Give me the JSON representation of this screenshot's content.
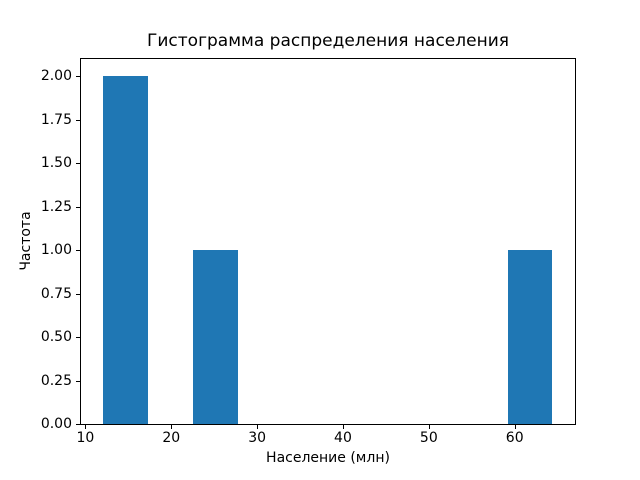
{
  "chart_data": {
    "type": "bar",
    "subtype": "histogram",
    "title": "Гистограмма распределения населения",
    "xlabel": "Население (млн)",
    "ylabel": "Частота",
    "bar_color": "#1f77b4",
    "axes_edge_color": "#000000",
    "background_color": "#ffffff",
    "grid": false,
    "legend": null,
    "xlim": [
      9.49,
      67.02
    ],
    "ylim": [
      0,
      2.1
    ],
    "x_ticks": [
      {
        "value": 10,
        "label": "10"
      },
      {
        "value": 20,
        "label": "20"
      },
      {
        "value": 30,
        "label": "30"
      },
      {
        "value": 40,
        "label": "40"
      },
      {
        "value": 50,
        "label": "50"
      },
      {
        "value": 60,
        "label": "60"
      }
    ],
    "y_ticks": [
      {
        "value": 0.0,
        "label": "0.00"
      },
      {
        "value": 0.25,
        "label": "0.25"
      },
      {
        "value": 0.5,
        "label": "0.50"
      },
      {
        "value": 0.75,
        "label": "0.75"
      },
      {
        "value": 1.0,
        "label": "1.00"
      },
      {
        "value": 1.25,
        "label": "1.25"
      },
      {
        "value": 1.5,
        "label": "1.50"
      },
      {
        "value": 1.75,
        "label": "1.75"
      },
      {
        "value": 2.0,
        "label": "2.00"
      }
    ],
    "bin_edges": [
      12.1,
      17.33,
      22.56,
      27.79,
      33.02,
      38.25,
      43.48,
      48.71,
      53.94,
      59.17,
      64.4
    ],
    "counts": [
      2,
      0,
      1,
      0,
      0,
      0,
      0,
      0,
      0,
      1
    ]
  }
}
